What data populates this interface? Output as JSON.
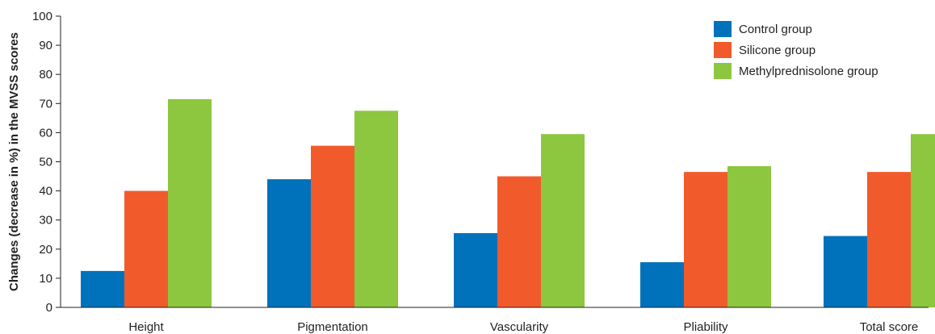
{
  "chart_data": {
    "type": "bar",
    "title": "",
    "xlabel": "",
    "ylabel": "Changes (decrease in %) in the MVSS scores",
    "ylim": [
      0,
      100
    ],
    "yticks": [
      0,
      10,
      20,
      30,
      40,
      50,
      60,
      70,
      80,
      90,
      100
    ],
    "grid": false,
    "legend_position": "top-right",
    "categories": [
      "Height",
      "Pigmentation",
      "Vascularity",
      "Pliability",
      "Total score"
    ],
    "series": [
      {
        "name": "Control group",
        "color": "#0071bb",
        "values": [
          12.5,
          44,
          25.5,
          15.5,
          24.5
        ]
      },
      {
        "name": "Silicone group",
        "color": "#f15a2b",
        "values": [
          40,
          55.5,
          45,
          46.5,
          46.5
        ]
      },
      {
        "name": "Methylprednisolone group",
        "color": "#8dc63f",
        "values": [
          71.5,
          67.5,
          59.5,
          48.5,
          59.5
        ]
      }
    ]
  }
}
